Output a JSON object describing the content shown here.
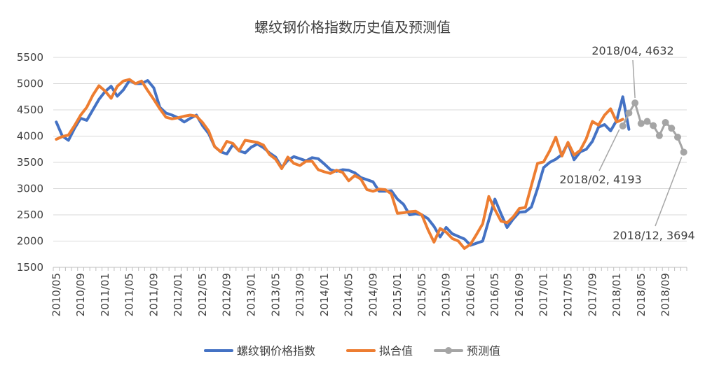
{
  "chart_data": {
    "type": "line",
    "title": "螺纹钢价格指数历史值及预测值",
    "ylim": [
      1500,
      5500
    ],
    "yticks": [
      1500,
      2000,
      2500,
      3000,
      3500,
      4000,
      4500,
      5000,
      5500
    ],
    "x_tick_labels": [
      "2010/05",
      "2010/09",
      "2011/01",
      "2011/05",
      "2011/09",
      "2012/01",
      "2012/05",
      "2012/09",
      "2013/01",
      "2013/05",
      "2013/09",
      "2014/01",
      "2014/05",
      "2014/09",
      "2015/01",
      "2015/05",
      "2015/09",
      "2016/01",
      "2016/05",
      "2016/09",
      "2017/01",
      "2017/05",
      "2017/09",
      "2018/01",
      "2018/05",
      "2018/09"
    ],
    "x_start": "2010/05",
    "x_end": "2018/12",
    "grid": "horizontal",
    "legend_position": "bottom",
    "series": [
      {
        "name": "螺纹钢价格指数",
        "color": "#4472C4",
        "start": "2010/05",
        "values": [
          4270,
          4000,
          3920,
          4150,
          4340,
          4300,
          4500,
          4700,
          4850,
          4950,
          4760,
          4880,
          5060,
          5000,
          5000,
          5060,
          4920,
          4550,
          4440,
          4400,
          4350,
          4270,
          4340,
          4400,
          4200,
          4050,
          3800,
          3700,
          3660,
          3840,
          3720,
          3680,
          3790,
          3850,
          3780,
          3680,
          3600,
          3400,
          3540,
          3610,
          3570,
          3530,
          3590,
          3570,
          3470,
          3360,
          3330,
          3360,
          3350,
          3300,
          3210,
          3170,
          3130,
          2950,
          2950,
          2960,
          2800,
          2700,
          2500,
          2520,
          2500,
          2430,
          2280,
          2080,
          2260,
          2140,
          2090,
          2040,
          1920,
          1960,
          2000,
          2400,
          2800,
          2520,
          2260,
          2420,
          2550,
          2560,
          2650,
          3000,
          3400,
          3500,
          3560,
          3650,
          3870,
          3550,
          3700,
          3750,
          3900,
          4170,
          4220,
          4100,
          4300,
          4750,
          4130
        ]
      },
      {
        "name": "拟合值",
        "color": "#ED7D31",
        "start": "2010/05",
        "values": [
          3940,
          3990,
          4020,
          4200,
          4400,
          4550,
          4780,
          4960,
          4860,
          4720,
          4950,
          5050,
          5080,
          5000,
          5050,
          4870,
          4700,
          4520,
          4360,
          4330,
          4350,
          4380,
          4400,
          4380,
          4260,
          4100,
          3800,
          3700,
          3900,
          3860,
          3720,
          3920,
          3900,
          3880,
          3830,
          3650,
          3560,
          3380,
          3600,
          3480,
          3440,
          3520,
          3520,
          3360,
          3320,
          3290,
          3350,
          3310,
          3150,
          3250,
          3180,
          2980,
          2950,
          2990,
          2980,
          2900,
          2530,
          2540,
          2560,
          2570,
          2500,
          2220,
          1980,
          2240,
          2170,
          2050,
          2000,
          1860,
          1940,
          2130,
          2330,
          2850,
          2600,
          2380,
          2350,
          2460,
          2620,
          2640,
          3060,
          3480,
          3510,
          3720,
          3980,
          3620,
          3880,
          3640,
          3730,
          3950,
          4280,
          4210,
          4400,
          4520,
          4270,
          4320
        ]
      },
      {
        "name": "预测值",
        "color": "#A5A5A5",
        "start": "2018/02",
        "values": [
          4193,
          4440,
          4632,
          4240,
          4280,
          4200,
          4010,
          4260,
          4150,
          3980,
          3694
        ]
      }
    ],
    "annotations": [
      {
        "text": "2018/04, 4632",
        "series": "预测值",
        "date": "2018/04"
      },
      {
        "text": "2018/02, 4193",
        "series": "预测值",
        "date": "2018/02"
      },
      {
        "text": "2018/12, 3694",
        "series": "预测值",
        "date": "2018/12"
      }
    ]
  }
}
